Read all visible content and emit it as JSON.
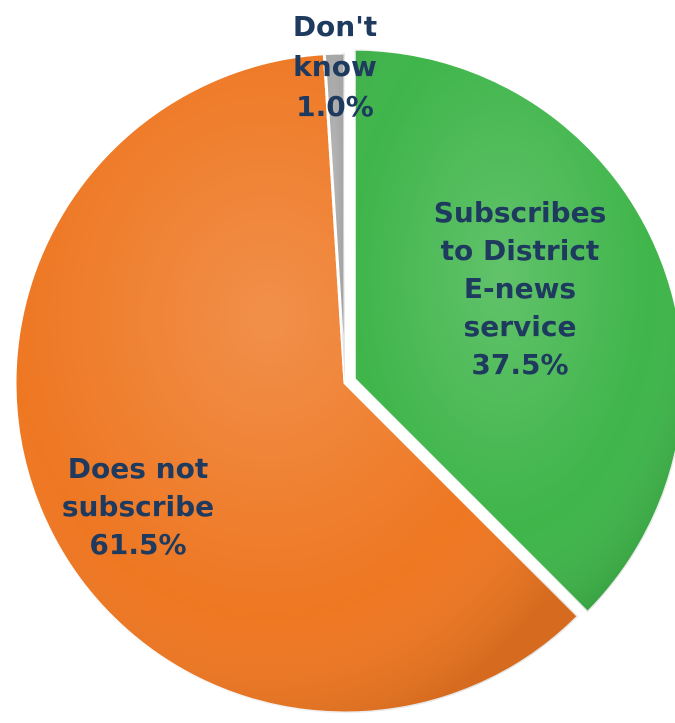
{
  "chart_data": {
    "type": "pie",
    "slices": [
      {
        "label_lines": [
          "Subscribes",
          "to District",
          "E-news",
          "service",
          "37.5%"
        ],
        "value": 37.5,
        "color": "#3fb54a"
      },
      {
        "label_lines": [
          "Does not",
          "subscribe",
          "61.5%"
        ],
        "value": 61.5,
        "color": "#ee7722"
      },
      {
        "label_lines": [
          "Don't",
          "know",
          "1.0%"
        ],
        "value": 1.0,
        "color": "#a6a6a6"
      }
    ],
    "label_color": "#1f3a5f"
  }
}
